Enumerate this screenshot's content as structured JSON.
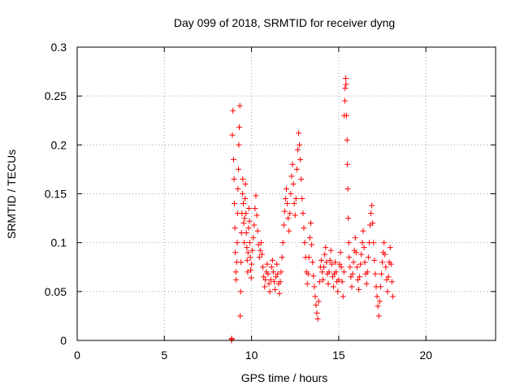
{
  "chart_data": {
    "type": "scatter",
    "title": "Day 099 of 2018, SRMTID for receiver dyng",
    "xlabel": "GPS time / hours",
    "ylabel": "SRMTID / TECUs",
    "xlim": [
      0,
      24
    ],
    "ylim": [
      0,
      0.3
    ],
    "x_ticks": [
      0,
      5,
      10,
      15,
      20
    ],
    "x_tick_labels": [
      "0",
      "5",
      "10",
      "15",
      "20"
    ],
    "y_ticks": [
      0,
      0.05,
      0.1,
      0.15,
      0.2,
      0.25,
      0.3
    ],
    "y_tick_labels": [
      "0",
      "0.05",
      "0.1",
      "0.15",
      "0.2",
      "0.25",
      "0.3"
    ],
    "grid": true,
    "marker": "plus",
    "color": "#ff0000",
    "series": [
      {
        "name": "",
        "points": [
          [
            8.85,
            0.0
          ],
          [
            8.86,
            0.002
          ],
          [
            8.87,
            0.001
          ],
          [
            8.9,
            0.21
          ],
          [
            8.93,
            0.235
          ],
          [
            8.97,
            0.185
          ],
          [
            9.0,
            0.165
          ],
          [
            9.02,
            0.14
          ],
          [
            9.05,
            0.115
          ],
          [
            9.07,
            0.09
          ],
          [
            9.1,
            0.07
          ],
          [
            9.12,
            0.062
          ],
          [
            9.15,
            0.08
          ],
          [
            9.18,
            0.1
          ],
          [
            9.2,
            0.13
          ],
          [
            9.22,
            0.155
          ],
          [
            9.25,
            0.175
          ],
          [
            9.27,
            0.2
          ],
          [
            9.3,
            0.218
          ],
          [
            9.33,
            0.24
          ],
          [
            9.35,
            0.025
          ],
          [
            9.38,
            0.05
          ],
          [
            9.4,
            0.08
          ],
          [
            9.42,
            0.11
          ],
          [
            9.45,
            0.13
          ],
          [
            9.48,
            0.15
          ],
          [
            9.5,
            0.165
          ],
          [
            9.53,
            0.14
          ],
          [
            9.55,
            0.12
          ],
          [
            9.58,
            0.1
          ],
          [
            9.6,
            0.125
          ],
          [
            9.63,
            0.145
          ],
          [
            9.65,
            0.16
          ],
          [
            9.68,
            0.13
          ],
          [
            9.7,
            0.11
          ],
          [
            9.73,
            0.095
          ],
          [
            9.75,
            0.082
          ],
          [
            9.78,
            0.07
          ],
          [
            9.8,
            0.09
          ],
          [
            9.83,
            0.115
          ],
          [
            9.85,
            0.135
          ],
          [
            9.88,
            0.122
          ],
          [
            9.9,
            0.1
          ],
          [
            9.93,
            0.085
          ],
          [
            9.95,
            0.072
          ],
          [
            9.98,
            0.064
          ],
          [
            10.0,
            0.078
          ],
          [
            10.05,
            0.092
          ],
          [
            10.1,
            0.105
          ],
          [
            10.15,
            0.118
          ],
          [
            10.2,
            0.135
          ],
          [
            10.25,
            0.148
          ],
          [
            10.3,
            0.128
          ],
          [
            10.35,
            0.112
          ],
          [
            10.4,
            0.098
          ],
          [
            10.45,
            0.085
          ],
          [
            10.5,
            0.092
          ],
          [
            10.55,
            0.1
          ],
          [
            10.6,
            0.088
          ],
          [
            10.65,
            0.075
          ],
          [
            10.7,
            0.065
          ],
          [
            10.75,
            0.055
          ],
          [
            10.8,
            0.062
          ],
          [
            10.85,
            0.07
          ],
          [
            10.9,
            0.078
          ],
          [
            10.95,
            0.068
          ],
          [
            11.0,
            0.058
          ],
          [
            11.05,
            0.05
          ],
          [
            11.1,
            0.062
          ],
          [
            11.15,
            0.075
          ],
          [
            11.2,
            0.082
          ],
          [
            11.25,
            0.07
          ],
          [
            11.3,
            0.06
          ],
          [
            11.35,
            0.052
          ],
          [
            11.4,
            0.065
          ],
          [
            11.45,
            0.078
          ],
          [
            11.5,
            0.068
          ],
          [
            11.55,
            0.058
          ],
          [
            11.6,
            0.048
          ],
          [
            11.65,
            0.06
          ],
          [
            11.7,
            0.07
          ],
          [
            11.75,
            0.085
          ],
          [
            11.8,
            0.1
          ],
          [
            11.85,
            0.118
          ],
          [
            11.9,
            0.132
          ],
          [
            11.95,
            0.145
          ],
          [
            12.0,
            0.155
          ],
          [
            12.05,
            0.14
          ],
          [
            12.1,
            0.125
          ],
          [
            12.15,
            0.112
          ],
          [
            12.2,
            0.13
          ],
          [
            12.25,
            0.15
          ],
          [
            12.3,
            0.168
          ],
          [
            12.35,
            0.18
          ],
          [
            12.4,
            0.16
          ],
          [
            12.45,
            0.14
          ],
          [
            12.5,
            0.128
          ],
          [
            12.55,
            0.145
          ],
          [
            12.6,
            0.175
          ],
          [
            12.65,
            0.195
          ],
          [
            12.7,
            0.212
          ],
          [
            12.75,
            0.2
          ],
          [
            12.8,
            0.185
          ],
          [
            12.85,
            0.165
          ],
          [
            12.9,
            0.145
          ],
          [
            12.95,
            0.13
          ],
          [
            13.0,
            0.115
          ],
          [
            13.05,
            0.1
          ],
          [
            13.1,
            0.085
          ],
          [
            13.15,
            0.07
          ],
          [
            13.2,
            0.058
          ],
          [
            13.25,
            0.068
          ],
          [
            13.3,
            0.085
          ],
          [
            13.35,
            0.105
          ],
          [
            13.4,
            0.12
          ],
          [
            13.45,
            0.098
          ],
          [
            13.5,
            0.08
          ],
          [
            13.55,
            0.066
          ],
          [
            13.6,
            0.055
          ],
          [
            13.65,
            0.045
          ],
          [
            13.7,
            0.036
          ],
          [
            13.75,
            0.028
          ],
          [
            13.8,
            0.022
          ],
          [
            13.85,
            0.04
          ],
          [
            13.9,
            0.06
          ],
          [
            13.95,
            0.075
          ],
          [
            14.0,
            0.082
          ],
          [
            14.05,
            0.07
          ],
          [
            14.1,
            0.062
          ],
          [
            14.15,
            0.075
          ],
          [
            14.2,
            0.088
          ],
          [
            14.25,
            0.095
          ],
          [
            14.3,
            0.08
          ],
          [
            14.35,
            0.068
          ],
          [
            14.4,
            0.058
          ],
          [
            14.45,
            0.07
          ],
          [
            14.5,
            0.082
          ],
          [
            14.55,
            0.092
          ],
          [
            14.6,
            0.078
          ],
          [
            14.65,
            0.065
          ],
          [
            14.7,
            0.055
          ],
          [
            14.75,
            0.068
          ],
          [
            14.8,
            0.08
          ],
          [
            14.85,
            0.07
          ],
          [
            14.9,
            0.06
          ],
          [
            14.95,
            0.05
          ],
          [
            15.0,
            0.062
          ],
          [
            15.05,
            0.078
          ],
          [
            15.1,
            0.09
          ],
          [
            15.15,
            0.075
          ],
          [
            15.2,
            0.06
          ],
          [
            15.25,
            0.045
          ],
          [
            15.3,
            0.07
          ],
          [
            15.32,
            0.23
          ],
          [
            15.35,
            0.245
          ],
          [
            15.37,
            0.258
          ],
          [
            15.4,
            0.268
          ],
          [
            15.42,
            0.262
          ],
          [
            15.45,
            0.23
          ],
          [
            15.48,
            0.205
          ],
          [
            15.5,
            0.18
          ],
          [
            15.52,
            0.155
          ],
          [
            15.55,
            0.125
          ],
          [
            15.58,
            0.1
          ],
          [
            15.6,
            0.085
          ],
          [
            15.65,
            0.075
          ],
          [
            15.7,
            0.065
          ],
          [
            15.75,
            0.055
          ],
          [
            15.8,
            0.068
          ],
          [
            15.85,
            0.08
          ],
          [
            15.9,
            0.092
          ],
          [
            15.95,
            0.105
          ],
          [
            16.0,
            0.09
          ],
          [
            16.05,
            0.075
          ],
          [
            16.1,
            0.062
          ],
          [
            16.15,
            0.052
          ],
          [
            16.2,
            0.065
          ],
          [
            16.25,
            0.078
          ],
          [
            16.3,
            0.088
          ],
          [
            16.35,
            0.1
          ],
          [
            16.4,
            0.112
          ],
          [
            16.45,
            0.095
          ],
          [
            16.5,
            0.08
          ],
          [
            16.55,
            0.068
          ],
          [
            16.6,
            0.058
          ],
          [
            16.65,
            0.07
          ],
          [
            16.7,
            0.085
          ],
          [
            16.75,
            0.1
          ],
          [
            16.8,
            0.118
          ],
          [
            16.85,
            0.13
          ],
          [
            16.9,
            0.138
          ],
          [
            16.95,
            0.12
          ],
          [
            17.0,
            0.1
          ],
          [
            17.05,
            0.082
          ],
          [
            17.1,
            0.068
          ],
          [
            17.15,
            0.055
          ],
          [
            17.2,
            0.045
          ],
          [
            17.25,
            0.035
          ],
          [
            17.3,
            0.025
          ],
          [
            17.35,
            0.04
          ],
          [
            17.4,
            0.055
          ],
          [
            17.45,
            0.068
          ],
          [
            17.5,
            0.08
          ],
          [
            17.55,
            0.09
          ],
          [
            17.6,
            0.1
          ],
          [
            17.65,
            0.088
          ],
          [
            17.7,
            0.075
          ],
          [
            17.75,
            0.062
          ],
          [
            17.8,
            0.05
          ],
          [
            17.85,
            0.065
          ],
          [
            17.9,
            0.08
          ],
          [
            17.95,
            0.095
          ],
          [
            18.0,
            0.078
          ],
          [
            18.05,
            0.06
          ],
          [
            18.1,
            0.045
          ]
        ]
      }
    ]
  }
}
